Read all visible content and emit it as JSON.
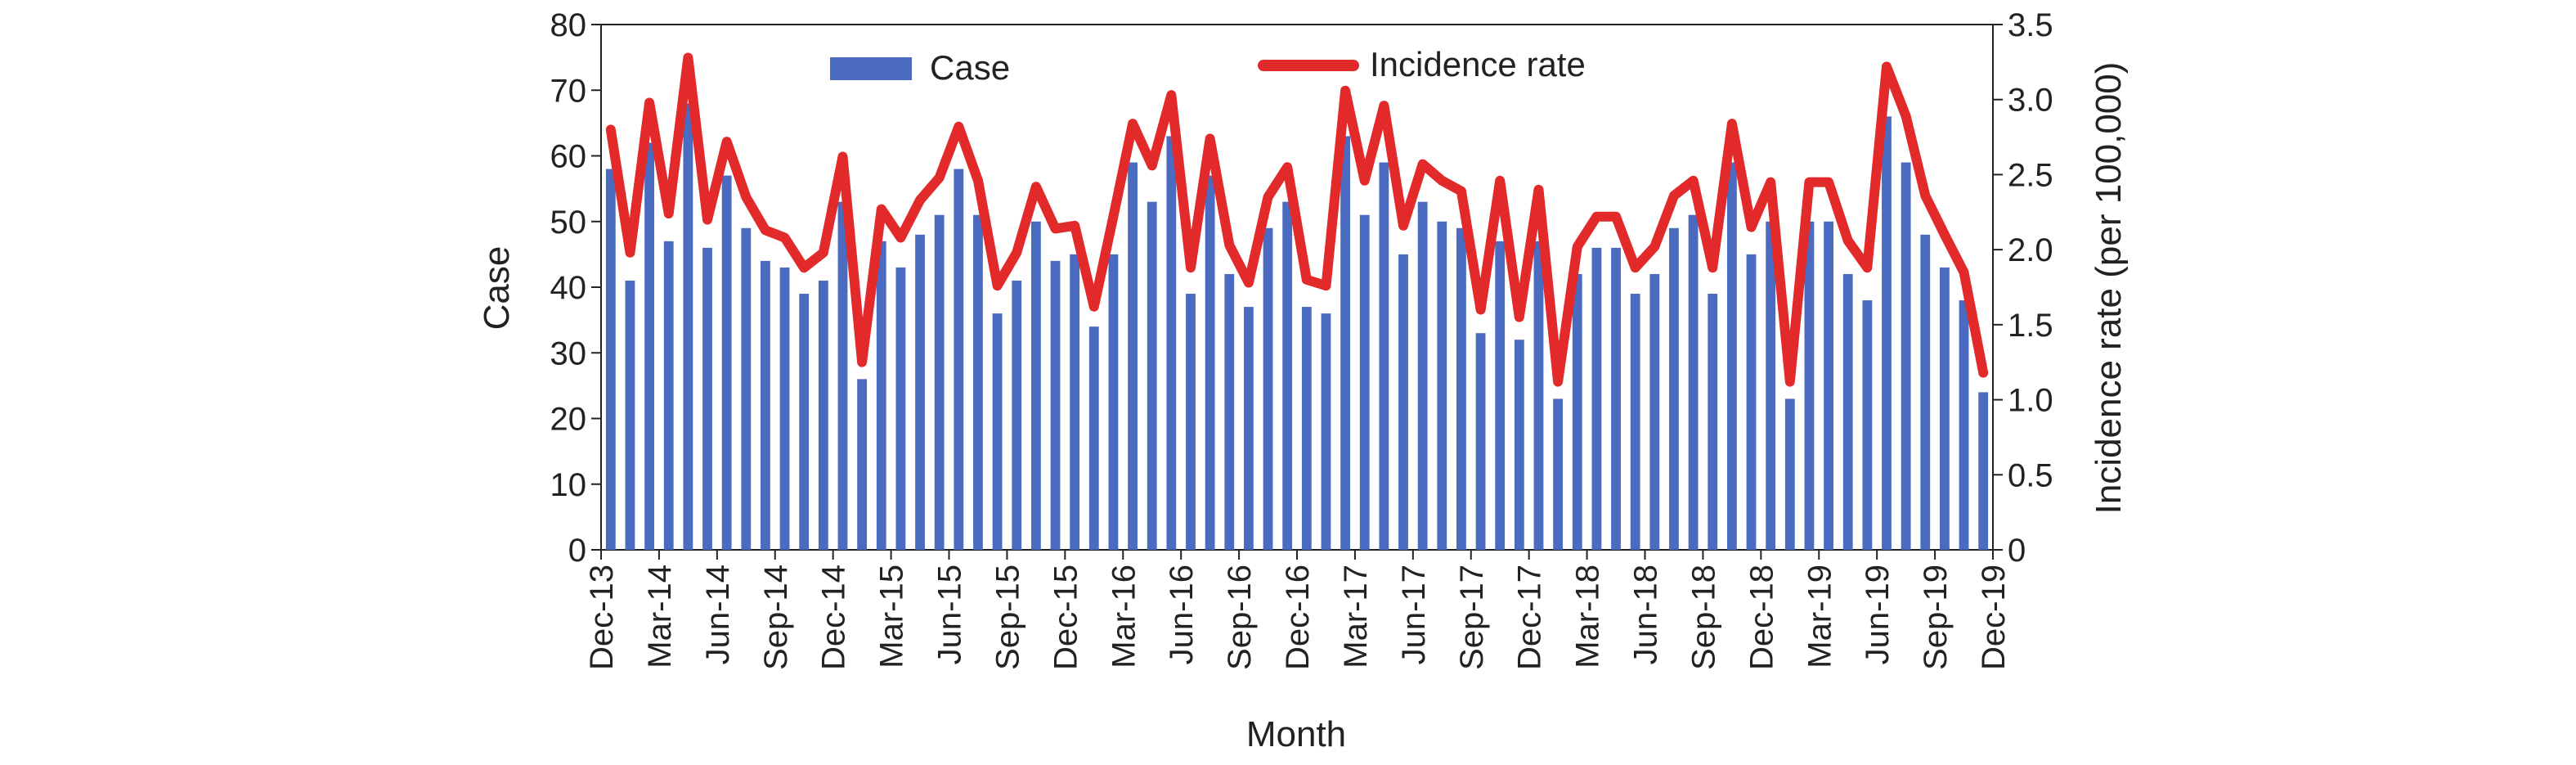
{
  "chart_data": {
    "type": "bar",
    "title": "",
    "xlabel": "Month",
    "ylabel": "Case",
    "y2label": "Incidence rate (per 100,000)",
    "ylim": [
      0,
      80
    ],
    "y2lim": [
      0,
      3.5
    ],
    "yticks": [
      "0",
      "10",
      "20",
      "30",
      "40",
      "50",
      "60",
      "70",
      "80"
    ],
    "y2ticks": [
      "0",
      "0.5",
      "1.0",
      "1.5",
      "2.0",
      "2.5",
      "3.0",
      "3.5"
    ],
    "x_tick_labels": [
      "Dec-13",
      "Mar-14",
      "Jun-14",
      "Sep-14",
      "Dec-14",
      "Mar-15",
      "Jun-15",
      "Sep-15",
      "Dec-15",
      "Mar-16",
      "Jun-16",
      "Sep-16",
      "Dec-16",
      "Mar-17",
      "Jun-17",
      "Sep-17",
      "Dec-17",
      "Mar-18",
      "Jun-18",
      "Sep-18",
      "Dec-18",
      "Mar-19",
      "Jun-19",
      "Sep-19",
      "Dec-19"
    ],
    "legend_position": "top",
    "series": [
      {
        "name": "Case",
        "type": "bar",
        "axis": "left",
        "color": "#4a6bbf",
        "values": [
          58,
          41,
          62,
          47,
          68,
          46,
          57,
          49,
          44,
          43,
          39,
          41,
          53,
          26,
          47,
          43,
          48,
          51,
          58,
          51,
          36,
          41,
          50,
          44,
          45,
          34,
          45,
          59,
          53,
          63,
          39,
          57,
          42,
          37,
          49,
          53,
          37,
          36,
          63,
          51,
          59,
          45,
          53,
          50,
          49,
          33,
          47,
          32,
          47,
          23,
          42,
          46,
          46,
          39,
          42,
          49,
          51,
          39,
          59,
          45,
          50,
          23,
          50,
          50,
          42,
          38,
          66,
          59,
          48,
          43,
          38,
          24
        ]
      },
      {
        "name": "Incidence rate",
        "type": "line",
        "axis": "right",
        "color": "#e32a2a",
        "values": [
          2.8,
          1.98,
          2.98,
          2.24,
          3.28,
          2.2,
          2.72,
          2.35,
          2.13,
          2.08,
          1.88,
          1.98,
          2.62,
          1.25,
          2.27,
          2.08,
          2.33,
          2.48,
          2.82,
          2.46,
          1.76,
          1.98,
          2.42,
          2.14,
          2.16,
          1.62,
          2.22,
          2.84,
          2.56,
          3.03,
          1.88,
          2.74,
          2.03,
          1.78,
          2.35,
          2.55,
          1.8,
          1.76,
          3.06,
          2.46,
          2.96,
          2.16,
          2.57,
          2.46,
          2.39,
          1.6,
          2.46,
          1.55,
          2.4,
          1.12,
          2.02,
          2.22,
          2.22,
          1.88,
          2.02,
          2.36,
          2.46,
          1.88,
          2.84,
          2.15,
          2.45,
          1.12,
          2.45,
          2.45,
          2.06,
          1.88,
          3.22,
          2.89,
          2.36,
          2.1,
          1.85,
          1.18
        ]
      }
    ]
  }
}
